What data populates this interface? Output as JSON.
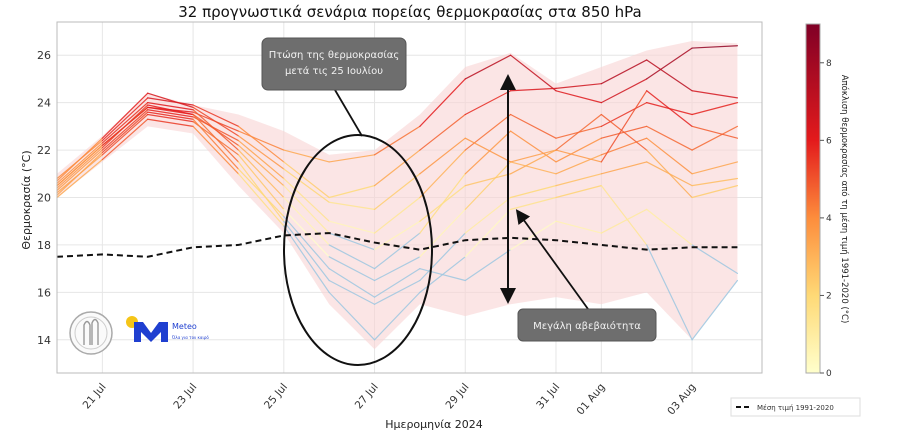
{
  "chart_data": {
    "type": "line",
    "title": "32 προγνωστικά σενάρια πορείας θερμοκρασίας στα 850 hPa",
    "xlabel": "Ημερομηνία 2024",
    "ylabel": "Θερμοκρασία (°C)",
    "xlim": [
      "2024-07-20",
      "2024-08-04T13:00"
    ],
    "ylim": [
      12.6,
      27.4
    ],
    "grid": true,
    "x_ticks": [
      {
        "date": "2024-07-21",
        "label": "21 Jul"
      },
      {
        "date": "2024-07-23",
        "label": "23 Jul"
      },
      {
        "date": "2024-07-25",
        "label": "25 Jul"
      },
      {
        "date": "2024-07-27",
        "label": "27 Jul"
      },
      {
        "date": "2024-07-29",
        "label": "29 Jul"
      },
      {
        "date": "2024-07-31",
        "label": "31 Jul"
      },
      {
        "date": "2024-08-01",
        "label": "01 Aug"
      },
      {
        "date": "2024-08-03",
        "label": "03 Aug"
      }
    ],
    "y_ticks": [
      14,
      16,
      18,
      20,
      22,
      24,
      26
    ],
    "x": [
      "2024-07-20",
      "2024-07-21",
      "2024-07-22",
      "2024-07-23",
      "2024-07-24",
      "2024-07-25",
      "2024-07-26",
      "2024-07-27",
      "2024-07-28",
      "2024-07-29",
      "2024-07-30",
      "2024-07-31",
      "2024-08-01",
      "2024-08-02",
      "2024-08-03",
      "2024-08-04"
    ],
    "climatology": {
      "name": "Μέση τιμή 1991-2020",
      "values": [
        17.5,
        17.6,
        17.5,
        17.9,
        18.0,
        18.4,
        18.5,
        18.1,
        17.8,
        18.2,
        18.3,
        18.2,
        18.0,
        17.8,
        17.9,
        17.9
      ]
    },
    "envelope": {
      "max": [
        21.0,
        22.6,
        24.4,
        23.9,
        23.5,
        22.8,
        21.8,
        22.0,
        23.5,
        25.5,
        26.1,
        24.8,
        25.5,
        26.2,
        26.6,
        26.5
      ],
      "min": [
        20.0,
        21.5,
        23.0,
        22.7,
        20.5,
        18.5,
        15.5,
        13.6,
        15.5,
        15.0,
        15.5,
        15.8,
        15.5,
        16.0,
        14.0,
        16.5
      ]
    },
    "members": [
      [
        20.5,
        22.2,
        23.8,
        23.6,
        22.8,
        22.0,
        21.5,
        21.8,
        23.0,
        25.0,
        26.0,
        24.5,
        24.0,
        25.0,
        26.3,
        26.4
      ],
      [
        20.8,
        22.4,
        24.2,
        23.9,
        23.0,
        21.5,
        20.0,
        20.5,
        22.0,
        23.5,
        24.5,
        24.6,
        24.8,
        25.8,
        24.5,
        24.2
      ],
      [
        20.3,
        22.0,
        23.7,
        23.4,
        22.4,
        20.8,
        19.0,
        18.5,
        20.0,
        22.0,
        23.5,
        22.5,
        23.0,
        24.0,
        23.5,
        24.0
      ],
      [
        20.6,
        22.3,
        24.0,
        23.7,
        22.0,
        20.0,
        18.0,
        17.0,
        18.5,
        21.0,
        22.8,
        21.5,
        22.5,
        23.0,
        22.0,
        23.0
      ],
      [
        20.2,
        21.8,
        23.5,
        23.2,
        21.8,
        19.5,
        17.5,
        16.5,
        17.5,
        19.5,
        21.5,
        21.0,
        21.8,
        22.5,
        21.0,
        21.5
      ],
      [
        20.4,
        22.1,
        23.9,
        23.5,
        21.5,
        19.0,
        16.5,
        15.5,
        16.5,
        18.5,
        20.0,
        20.5,
        21.0,
        21.5,
        20.5,
        20.8
      ],
      [
        20.0,
        21.6,
        23.3,
        23.0,
        21.0,
        18.8,
        16.0,
        14.0,
        16.0,
        17.5,
        19.5,
        20.0,
        20.5,
        18.0,
        14.0,
        16.5
      ],
      [
        20.7,
        22.5,
        24.4,
        23.8,
        22.6,
        21.2,
        19.8,
        19.5,
        21.0,
        22.5,
        21.5,
        22.0,
        21.5,
        24.5,
        23.0,
        22.5
      ],
      [
        20.1,
        21.9,
        23.6,
        23.3,
        21.2,
        19.2,
        17.0,
        15.8,
        17.0,
        16.5,
        17.8,
        19.0,
        18.5,
        19.5,
        18.0,
        16.8
      ],
      [
        20.5,
        22.2,
        23.8,
        23.5,
        22.2,
        20.5,
        18.5,
        17.8,
        19.0,
        20.5,
        21.0,
        22.0,
        23.5,
        22.0,
        20.0,
        20.5
      ]
    ],
    "colorbar": {
      "label": "Απόκλιση θερμοκρασίας από τη μέση τιμή 1991-2020 (°C)",
      "range": [
        0,
        9
      ],
      "ticks": [
        0,
        2,
        4,
        6,
        8
      ],
      "colormap": [
        "#ffffcc",
        "#fed976",
        "#fd8d3c",
        "#e31a1c",
        "#800026"
      ],
      "below_zero_color": "#9cc7e0"
    },
    "legend": {
      "placement": "bottom-right",
      "label": "Μέση τιμή 1991-2020"
    },
    "envelope_color": "#f9d4d4",
    "annotations": {
      "drop_box": [
        "Πτώση της θερμοκρασίας",
        "μετά τις 25 Ιουλίου"
      ],
      "uncertainty_box": "Μεγάλη αβεβαιότητα"
    },
    "logos": {
      "meteo": "Meteo",
      "meteo_tagline": "Όλα για τον καιρό"
    }
  }
}
